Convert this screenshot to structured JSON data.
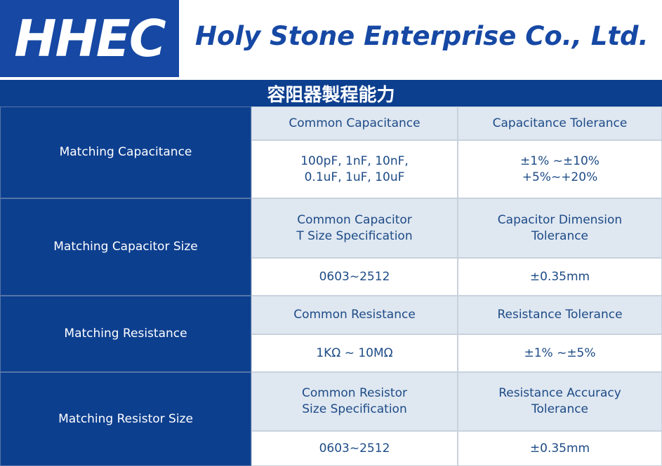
{
  "header": {
    "logo": "HHEC",
    "company": "Holy Stone Enterprise Co., Ltd."
  },
  "title": "容阻器製程能力",
  "table": {
    "rows": [
      {
        "label": "Matching Capacitance",
        "headers": [
          "Common Capacitance",
          "Capacitance Tolerance"
        ],
        "values": [
          "100pF, 1nF, 10nF,\n0.1uF, 1uF, 10uF",
          "±1% ~±10%\n+5%~+20%"
        ]
      },
      {
        "label": "Matching Capacitor Size",
        "headers": [
          "Common Capacitor\nT Size Specification",
          "Capacitor Dimension\nTolerance"
        ],
        "values": [
          "0603~2512",
          "±0.35mm"
        ]
      },
      {
        "label": "Matching Resistance",
        "headers": [
          "Common Resistance",
          "Resistance Tolerance"
        ],
        "values": [
          "1KΩ ~ 10MΩ",
          "±1% ~±5%"
        ]
      },
      {
        "label": "Matching Resistor Size",
        "headers": [
          "Common Resistor\nSize Specification",
          "Resistance Accuracy\nTolerance"
        ],
        "values": [
          "0603~2512",
          "±0.35mm"
        ]
      }
    ]
  }
}
